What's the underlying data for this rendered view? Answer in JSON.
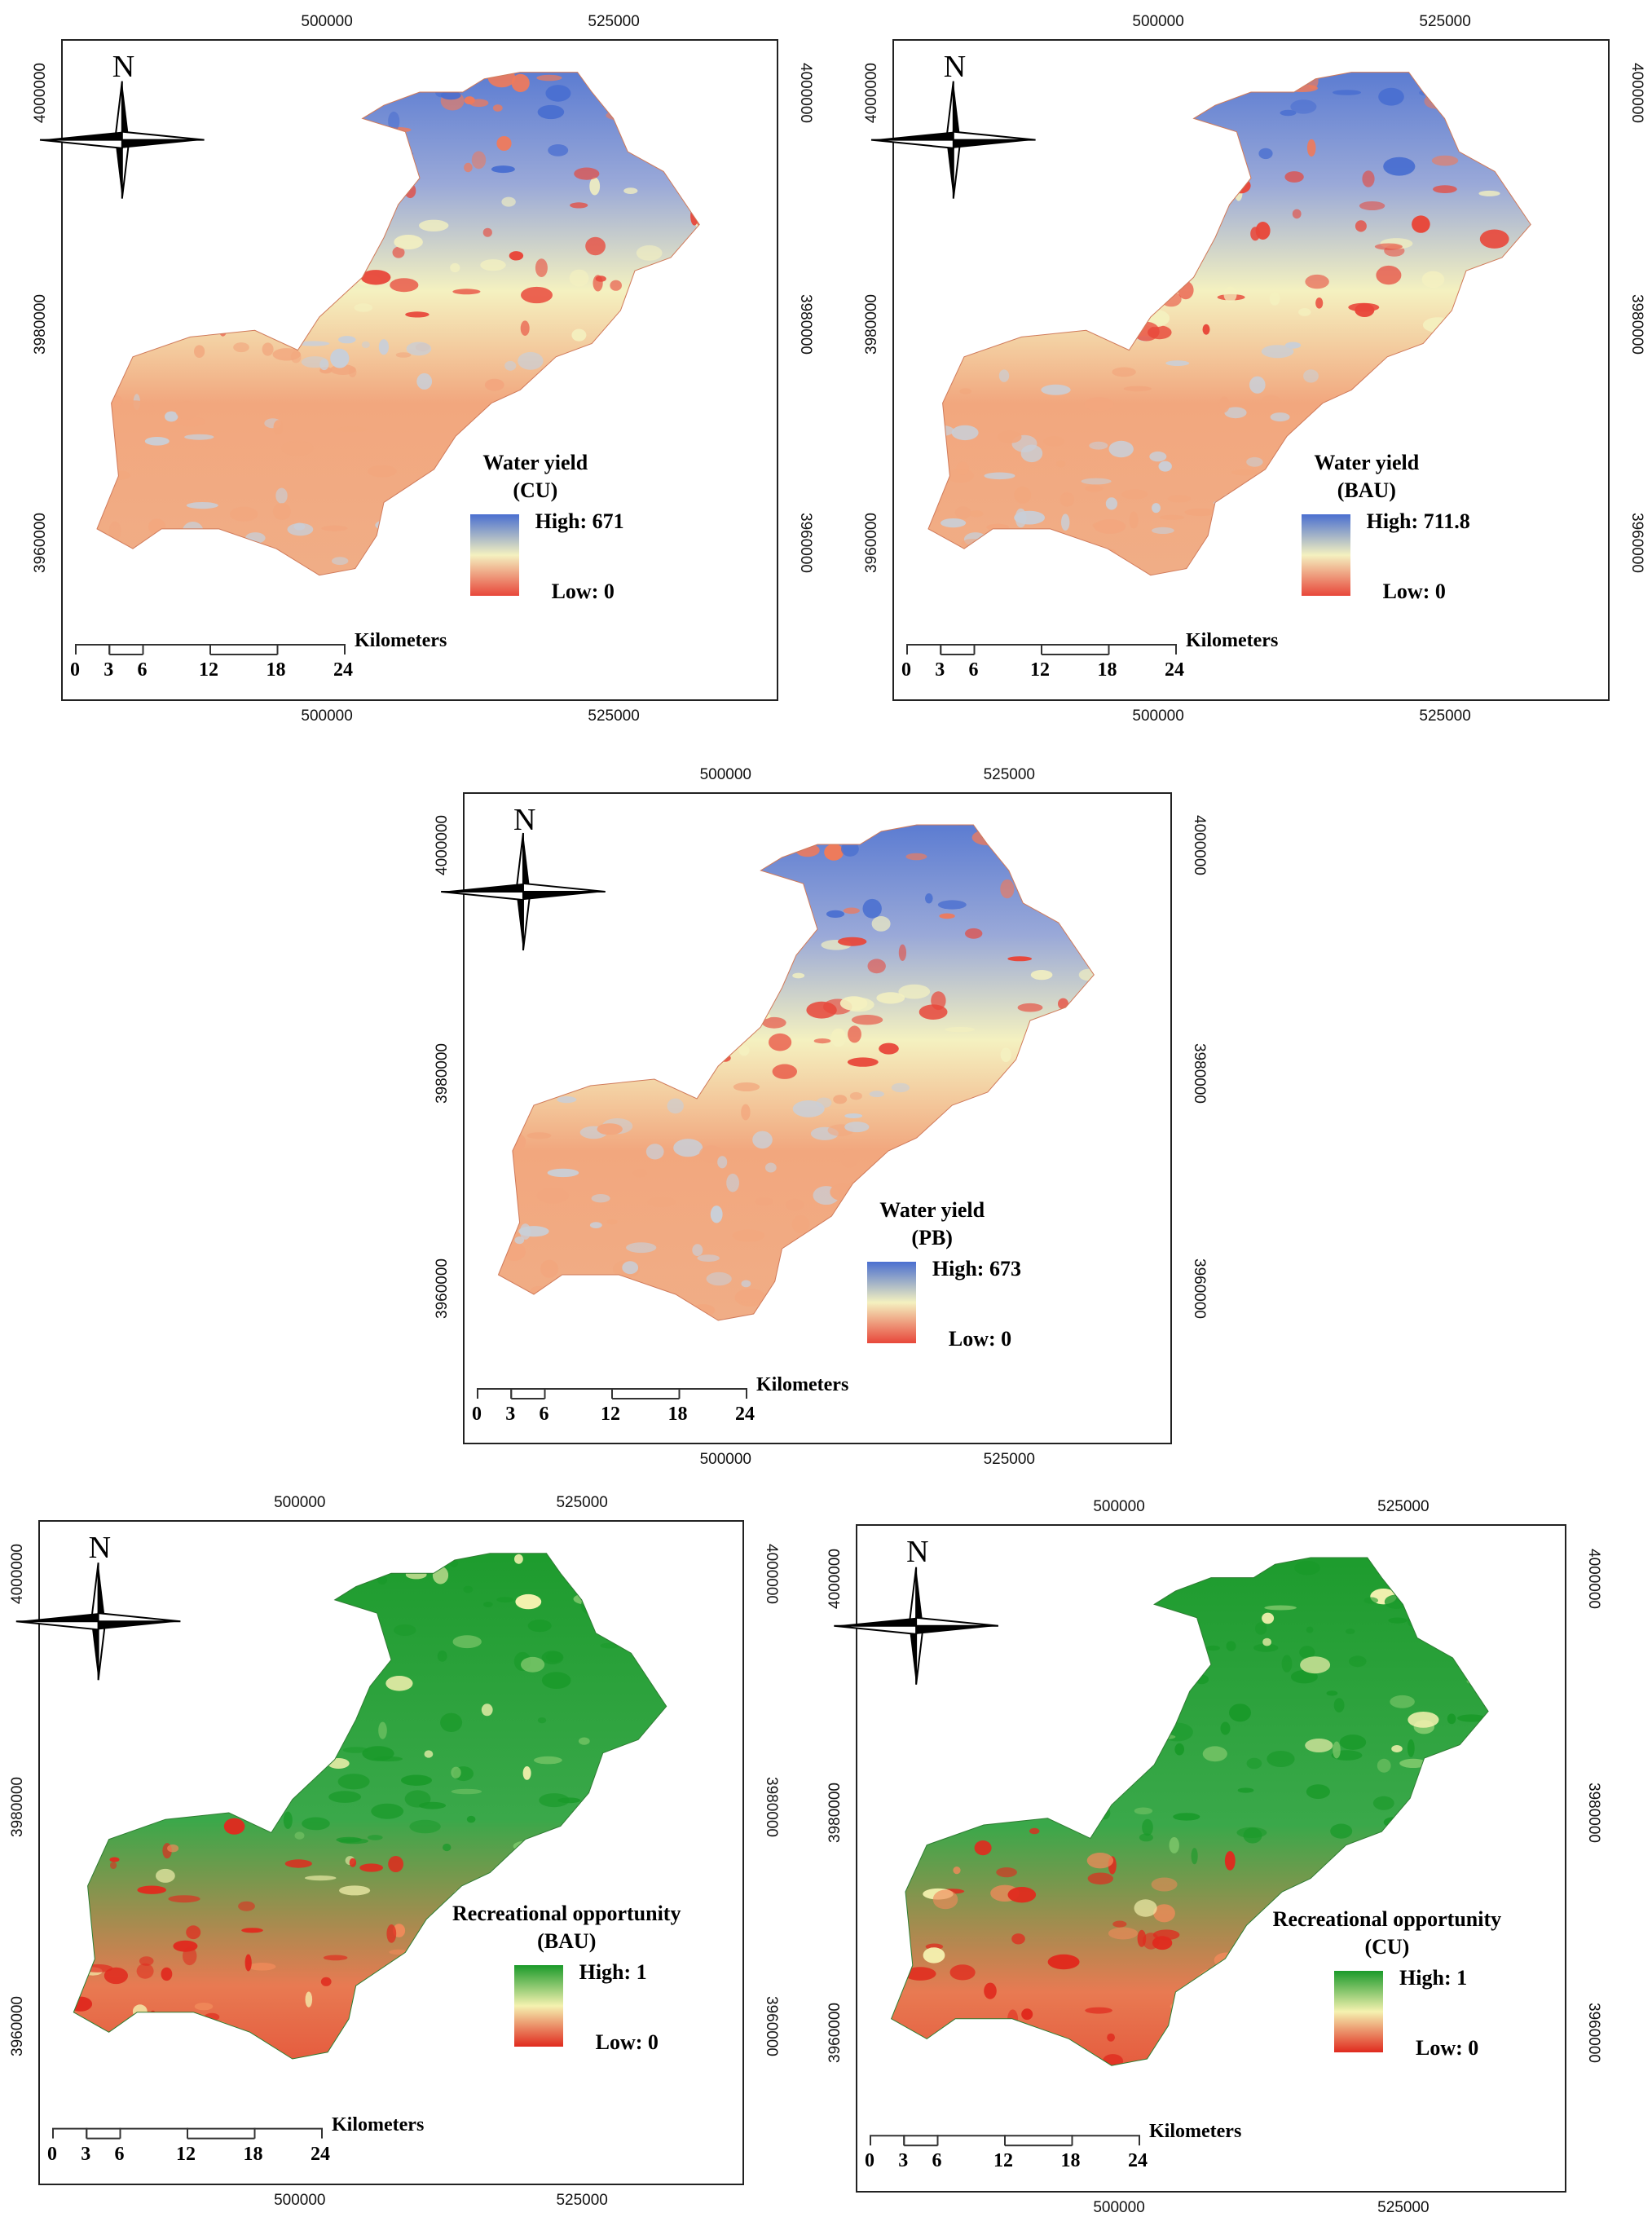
{
  "maps": [
    {
      "legend_title": "Water yield",
      "legend_subtitle": "(CU)",
      "high_label": "High: 671",
      "low_label": "Low: 0",
      "ramp": [
        "#4a6fd0",
        "#f4f1c0",
        "#e8473a"
      ]
    },
    {
      "legend_title": "Water yield",
      "legend_subtitle": "(BAU)",
      "high_label": "High: 711.8",
      "low_label": "Low: 0",
      "ramp": [
        "#4a6fd0",
        "#f4f1c0",
        "#e8473a"
      ]
    },
    {
      "legend_title": "Water yield",
      "legend_subtitle": "(PB)",
      "high_label": "High: 673",
      "low_label": "Low: 0",
      "ramp": [
        "#4a6fd0",
        "#f4f1c0",
        "#e8473a"
      ]
    },
    {
      "legend_title": "Recreational opportunity",
      "legend_subtitle": "(BAU)",
      "high_label": "High: 1",
      "low_label": "Low: 0",
      "ramp": [
        "#1a9a2a",
        "#f5f2b0",
        "#e02a1e"
      ]
    },
    {
      "legend_title": "Recreational opportunity",
      "legend_subtitle": "(CU)",
      "high_label": "High: 1",
      "low_label": "Low: 0",
      "ramp": [
        "#1a9a2a",
        "#f5f2b0",
        "#e02a1e"
      ]
    }
  ],
  "axes": {
    "x_ticks": [
      "500000",
      "525000"
    ],
    "y_ticks": [
      "4000000",
      "3980000",
      "3960000"
    ]
  },
  "north_label": "N",
  "scale_bar": {
    "ticks": [
      "0",
      "3",
      "6",
      "12",
      "18",
      "24"
    ],
    "unit": "Kilometers"
  },
  "colors": {
    "water_high": "#4a6fd0",
    "water_mid": "#f4f1c0",
    "water_low": "#e8473a",
    "water_base": "#f2a77e",
    "rec_high": "#1a9a2a",
    "rec_mid": "#f5f2b0",
    "rec_low": "#e02a1e"
  }
}
